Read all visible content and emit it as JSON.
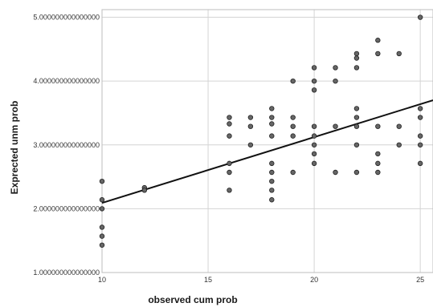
{
  "chart_data": {
    "type": "scatter",
    "xlabel": "observed cum prob",
    "ylabel": "Exprected unm prob",
    "xlim": [
      10,
      25.6
    ],
    "ylim": [
      1.0,
      5.12
    ],
    "x_ticks": [
      10,
      15,
      20,
      25
    ],
    "x_tick_labels": [
      "10",
      "15",
      "20",
      "25"
    ],
    "y_ticks": [
      1,
      2,
      3,
      4,
      5
    ],
    "y_tick_labels": [
      "1.000000000000000",
      "2.000000000000000",
      "3.000000000000000",
      "4.000000000000000",
      "5.000000000000000"
    ],
    "grid": true,
    "points": [
      [
        10,
        2.43
      ],
      [
        10,
        2.14
      ],
      [
        10,
        2.0
      ],
      [
        10,
        1.71
      ],
      [
        10,
        1.57
      ],
      [
        10,
        1.43
      ],
      [
        12,
        2.33
      ],
      [
        12,
        2.29
      ],
      [
        16,
        3.43
      ],
      [
        16,
        3.33
      ],
      [
        16,
        3.14
      ],
      [
        16,
        2.71
      ],
      [
        16,
        2.57
      ],
      [
        16,
        2.29
      ],
      [
        17,
        3.43
      ],
      [
        17,
        3.29
      ],
      [
        17,
        3.0
      ],
      [
        18,
        3.57
      ],
      [
        18,
        3.43
      ],
      [
        18,
        3.33
      ],
      [
        18,
        3.14
      ],
      [
        18,
        2.71
      ],
      [
        18,
        2.57
      ],
      [
        18,
        2.43
      ],
      [
        18,
        2.29
      ],
      [
        18,
        2.14
      ],
      [
        19,
        4.0
      ],
      [
        19,
        3.43
      ],
      [
        19,
        3.29
      ],
      [
        19,
        3.14
      ],
      [
        19,
        2.57
      ],
      [
        20,
        4.21
      ],
      [
        20,
        4.0
      ],
      [
        20,
        3.86
      ],
      [
        20,
        3.29
      ],
      [
        20,
        3.14
      ],
      [
        20,
        3.0
      ],
      [
        20,
        2.86
      ],
      [
        20,
        2.71
      ],
      [
        21,
        4.21
      ],
      [
        21,
        4.0
      ],
      [
        21,
        3.29
      ],
      [
        21,
        2.57
      ],
      [
        22,
        4.43
      ],
      [
        22,
        4.36
      ],
      [
        22,
        4.21
      ],
      [
        22,
        3.57
      ],
      [
        22,
        3.43
      ],
      [
        22,
        3.29
      ],
      [
        22,
        3.0
      ],
      [
        22,
        2.57
      ],
      [
        23,
        4.64
      ],
      [
        23,
        4.43
      ],
      [
        23,
        3.29
      ],
      [
        23,
        2.86
      ],
      [
        23,
        2.71
      ],
      [
        23,
        2.57
      ],
      [
        24,
        4.43
      ],
      [
        24,
        3.29
      ],
      [
        24,
        3.0
      ],
      [
        25,
        5.0
      ],
      [
        25,
        3.57
      ],
      [
        25,
        3.43
      ],
      [
        25,
        3.14
      ],
      [
        25,
        3.0
      ],
      [
        25,
        2.71
      ]
    ],
    "fit_line": {
      "x": [
        10,
        25.6
      ],
      "y": [
        2.09,
        3.7
      ]
    },
    "colors": {
      "point_fill": "#666666",
      "point_stroke": "#222222",
      "line": "#111111",
      "grid": "#d4d4d4",
      "frame": "#bdbdbd"
    }
  }
}
